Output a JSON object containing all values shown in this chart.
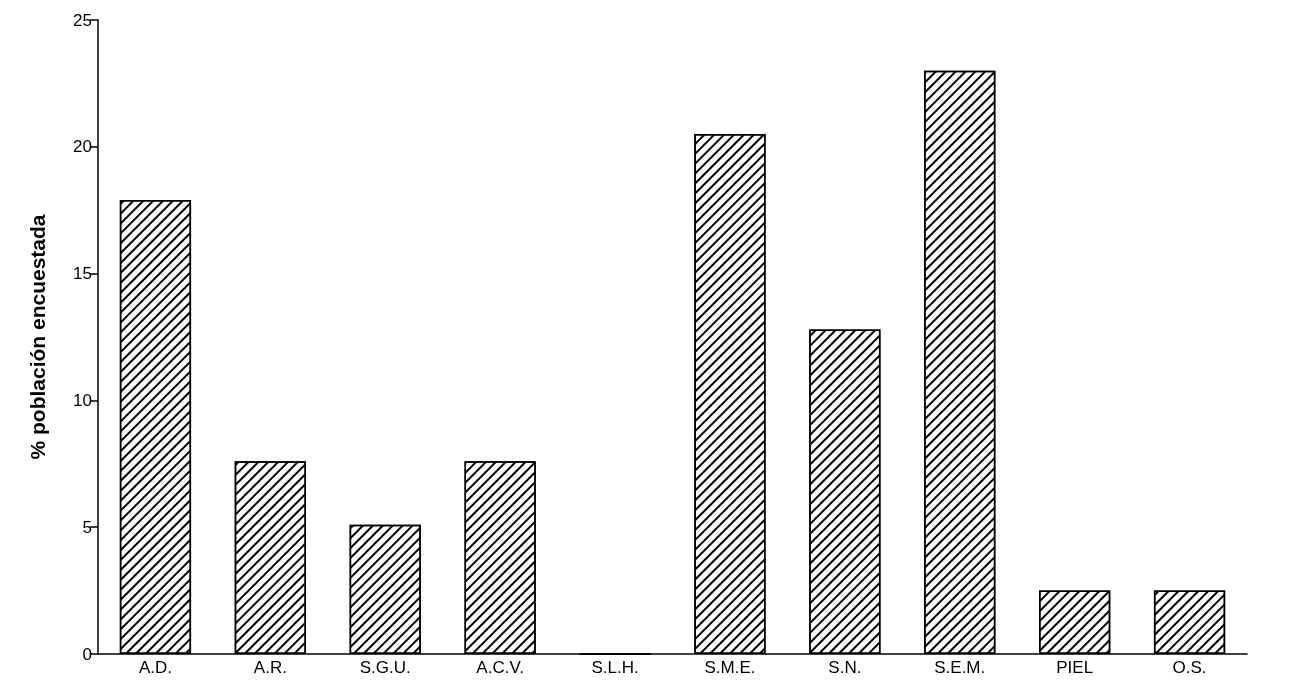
{
  "chart_data": {
    "type": "bar",
    "ylabel": "% población encuestada",
    "categories": [
      "A.D.",
      "A.R.",
      "S.G.U.",
      "A.C.V.",
      "S.L.H.",
      "S.M.E.",
      "S.N.",
      "S.E.M.",
      "PIEL",
      "O.S."
    ],
    "values": [
      17.9,
      7.6,
      5.1,
      7.6,
      0,
      20.5,
      12.8,
      23,
      2.5,
      2.5
    ],
    "color": "#000000",
    "ylim": [
      0,
      25
    ],
    "yticks": [
      0,
      5,
      10,
      15,
      20,
      25
    ],
    "grid": false
  }
}
